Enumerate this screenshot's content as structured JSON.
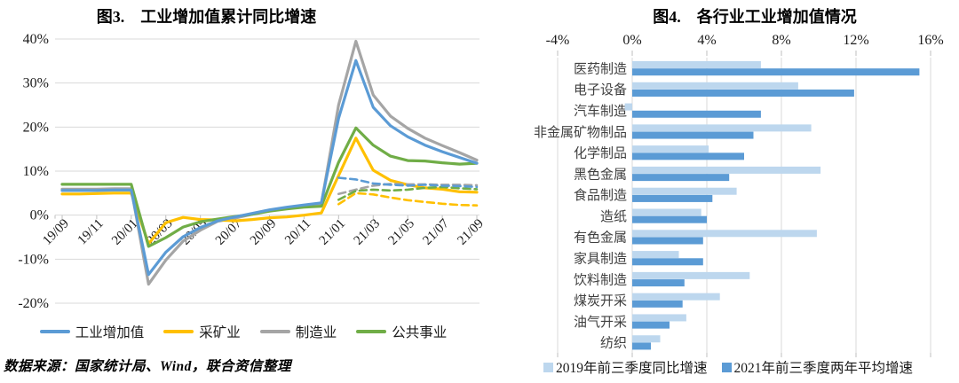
{
  "source_note": "数据来源：国家统计局、Wind，联合资信整理",
  "colors": {
    "blue": "#5B9BD5",
    "yellow": "#FFC000",
    "gray": "#A5A5A5",
    "green": "#70AD47",
    "light_blue": "#BDD7EE",
    "gridline": "#D9D9D9",
    "tick": "#BFBFBF",
    "axis_text": "#1a1a1a"
  },
  "chart_data": [
    {
      "type": "line",
      "title": "图3.　工业增加值累计同比增速",
      "x": [
        "19/09",
        "19/10",
        "19/11",
        "19/12",
        "20/01",
        "20/02",
        "20/03",
        "20/04",
        "20/05",
        "20/06",
        "20/07",
        "20/08",
        "20/09",
        "20/10",
        "20/11",
        "20/12",
        "21/01",
        "21/02",
        "21/03",
        "21/04",
        "21/05",
        "21/06",
        "21/07",
        "21/08",
        "21/09"
      ],
      "x_tick_labels": [
        "19/09",
        "19/11",
        "20/01",
        "20/03",
        "20/05",
        "20/07",
        "20/09",
        "20/11",
        "21/01",
        "21/03",
        "21/05",
        "21/07",
        "21/09"
      ],
      "ylim": [
        -20,
        40
      ],
      "ytick_values": [
        40,
        30,
        20,
        10,
        0,
        -10,
        -20
      ],
      "ytick_labels": [
        "40%",
        "30%",
        "20%",
        "10%",
        "0%",
        "-10%",
        "-20%"
      ],
      "legend": [
        "工业增加值",
        "采矿业",
        "制造业",
        "公共事业"
      ],
      "series": [
        {
          "name": "制造业",
          "color": "#A5A5A5",
          "style": "solid",
          "values": [
            5.9,
            5.9,
            5.9,
            6.0,
            6.0,
            -15.7,
            -10.2,
            -5.9,
            -3.4,
            -1.4,
            -0.7,
            0.2,
            1.0,
            1.5,
            2.0,
            2.6,
            25.0,
            39.5,
            27.3,
            22.5,
            19.7,
            17.5,
            15.8,
            14.2,
            12.5
          ]
        },
        {
          "name": "采矿业",
          "color": "#FFC000",
          "style": "solid",
          "values": [
            4.8,
            4.8,
            4.9,
            5.0,
            5.0,
            -6.5,
            -1.7,
            -0.5,
            -1.0,
            -1.1,
            -1.3,
            -1.0,
            -0.6,
            -0.4,
            0.0,
            0.5,
            9.0,
            17.5,
            10.2,
            7.9,
            6.9,
            6.2,
            5.9,
            5.3,
            5.2
          ]
        },
        {
          "name": "公共事业",
          "color": "#70AD47",
          "style": "solid",
          "values": [
            7.0,
            7.0,
            7.0,
            7.0,
            7.0,
            -7.1,
            -5.1,
            -2.7,
            -1.5,
            -0.9,
            -0.3,
            0.2,
            0.9,
            1.4,
            1.8,
            2.0,
            12.0,
            19.8,
            15.9,
            13.4,
            12.4,
            12.3,
            11.9,
            11.6,
            11.8
          ]
        },
        {
          "name": "工业增加值",
          "color": "#5B9BD5",
          "style": "solid",
          "values": [
            5.6,
            5.6,
            5.6,
            5.7,
            5.7,
            -13.5,
            -8.4,
            -4.9,
            -2.8,
            -1.3,
            -0.4,
            0.4,
            1.2,
            1.8,
            2.3,
            2.8,
            22.0,
            35.1,
            24.5,
            20.3,
            17.8,
            15.9,
            14.4,
            13.1,
            11.8
          ]
        },
        {
          "name": "制造业",
          "color": "#A5A5A5",
          "style": "dashed",
          "values": [
            null,
            null,
            null,
            null,
            null,
            null,
            null,
            null,
            null,
            null,
            null,
            null,
            null,
            null,
            null,
            null,
            4.8,
            5.8,
            6.7,
            7.1,
            7.0,
            7.0,
            6.9,
            6.9,
            6.8
          ]
        },
        {
          "name": "公共事业",
          "color": "#70AD47",
          "style": "dashed",
          "values": [
            null,
            null,
            null,
            null,
            null,
            null,
            null,
            null,
            null,
            null,
            null,
            null,
            null,
            null,
            null,
            null,
            3.5,
            5.5,
            5.8,
            5.6,
            5.8,
            6.2,
            6.4,
            6.1,
            5.9
          ]
        },
        {
          "name": "采矿业",
          "color": "#FFC000",
          "style": "dashed",
          "values": [
            null,
            null,
            null,
            null,
            null,
            null,
            null,
            null,
            null,
            null,
            null,
            null,
            null,
            null,
            null,
            null,
            2.5,
            5.0,
            4.7,
            4.0,
            3.4,
            3.0,
            2.6,
            2.3,
            2.2
          ]
        },
        {
          "name": "工业增加值",
          "color": "#5B9BD5",
          "style": "dashed",
          "values": [
            null,
            null,
            null,
            null,
            null,
            null,
            null,
            null,
            null,
            null,
            null,
            null,
            null,
            null,
            null,
            null,
            8.5,
            8.1,
            7.2,
            6.9,
            6.7,
            6.9,
            6.7,
            6.6,
            6.4
          ]
        }
      ]
    },
    {
      "type": "bar",
      "orientation": "horizontal",
      "title": "图4.　各行业工业增加值情况",
      "categories": [
        "医药制造",
        "电子设备",
        "汽车制造",
        "非金属矿物制品",
        "化学制品",
        "黑色金属",
        "食品制造",
        "造纸",
        "有色金属",
        "家具制造",
        "饮料制造",
        "煤炭开采",
        "油气开采",
        "纺织"
      ],
      "xlim": [
        -4,
        16
      ],
      "xtick_values": [
        -4,
        0,
        4,
        8,
        12,
        16
      ],
      "xtick_labels": [
        "-4%",
        "0%",
        "4%",
        "8%",
        "12%",
        "16%"
      ],
      "series": [
        {
          "name": "2019年前三季度同比增速",
          "color": "#BDD7EE",
          "values": [
            6.9,
            8.9,
            -0.4,
            9.6,
            4.1,
            10.1,
            5.6,
            3.7,
            9.9,
            2.5,
            6.3,
            4.7,
            2.9,
            1.5
          ]
        },
        {
          "name": "2021年前三季度两年平均增速",
          "color": "#5B9BD5",
          "values": [
            15.4,
            11.9,
            6.9,
            6.5,
            6.0,
            5.2,
            4.3,
            4.0,
            3.8,
            3.8,
            2.8,
            2.7,
            2.0,
            1.0
          ]
        }
      ]
    }
  ]
}
